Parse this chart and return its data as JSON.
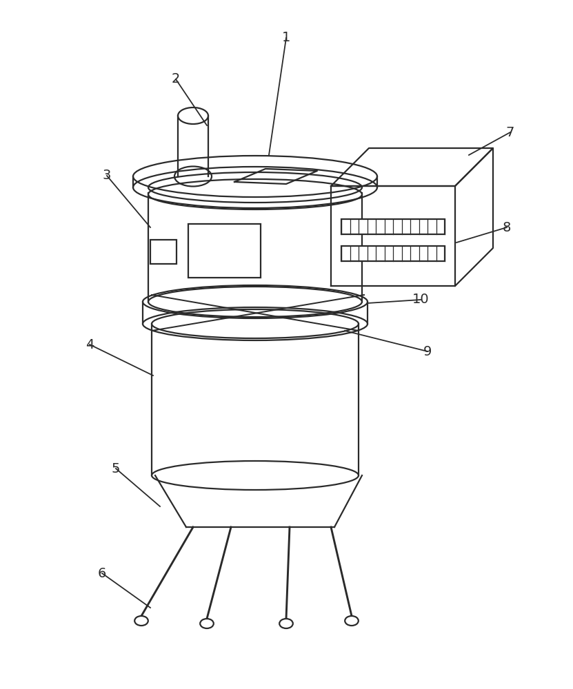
{
  "bg_color": "#ffffff",
  "line_color": "#2a2a2a",
  "line_width": 1.6,
  "label_fontsize": 14
}
